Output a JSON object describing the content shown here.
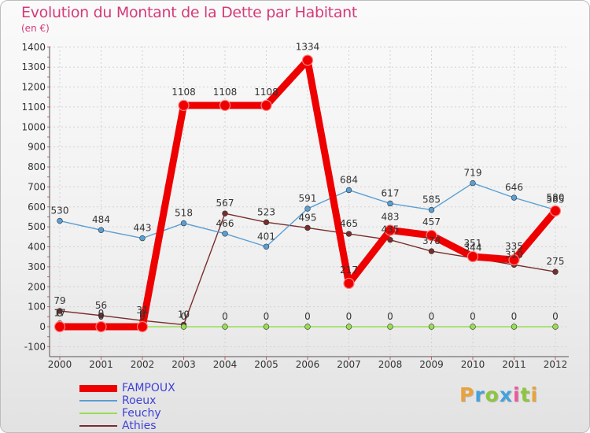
{
  "chart_data": {
    "type": "line",
    "title": "Evolution du Montant de la Dette par Habitant",
    "subtitle": "(en €)",
    "x": [
      "2000",
      "2001",
      "2002",
      "2003",
      "2004",
      "2005",
      "2006",
      "2007",
      "2008",
      "2009",
      "2010",
      "2011",
      "2012"
    ],
    "ylim": [
      -100,
      1400
    ],
    "yticks": [
      "-100",
      "0",
      "100",
      "200",
      "300",
      "400",
      "500",
      "600",
      "700",
      "800",
      "900",
      "1000",
      "1100",
      "1200",
      "1300",
      "1400"
    ],
    "series": [
      {
        "name": "Athies",
        "color": "#7a2c2c",
        "values": [
          79,
          56,
          31,
          10,
          567,
          523,
          495,
          465,
          435,
          378,
          344,
          310,
          275
        ]
      },
      {
        "name": "Feuchy",
        "color": "#99dd55",
        "values": [
          17,
          0,
          0,
          0,
          0,
          0,
          0,
          0,
          0,
          0,
          0,
          0,
          0
        ]
      },
      {
        "name": "Roeux",
        "color": "#5a9fd4",
        "values": [
          530,
          484,
          443,
          518,
          466,
          401,
          591,
          684,
          617,
          585,
          719,
          646,
          585
        ]
      },
      {
        "name": "FAMPOUX",
        "color": "#ee0000",
        "values": [
          0,
          0,
          0,
          1108,
          1108,
          1108,
          1334,
          217,
          483,
          457,
          351,
          335,
          580
        ]
      }
    ]
  },
  "legend": [
    {
      "name": "FAMPOUX",
      "color": "#ee0000"
    },
    {
      "name": "Roeux",
      "color": "#5a9fd4"
    },
    {
      "name": "Feuchy",
      "color": "#99dd55"
    },
    {
      "name": "Athies",
      "color": "#7a2c2c"
    }
  ],
  "logo": {
    "letters": [
      "P",
      "r",
      "o",
      "x",
      "i",
      "t",
      "i"
    ],
    "colors": [
      "#e8a33c",
      "#45a1dd",
      "#8cc63f",
      "#45a1dd",
      "#e85a9b",
      "#8cc63f",
      "#e8a33c"
    ]
  }
}
